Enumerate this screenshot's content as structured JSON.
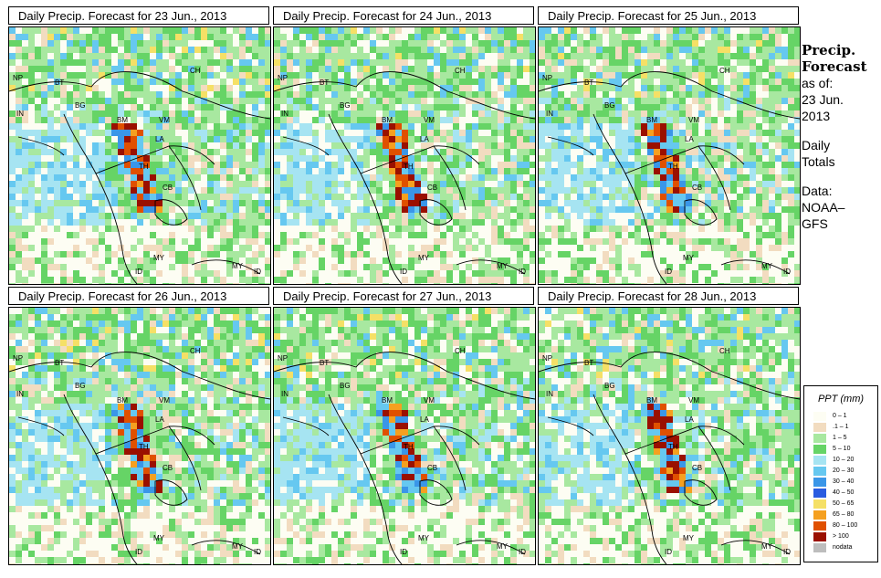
{
  "panels": [
    {
      "title": "Daily Precip. Forecast for  23 Jun., 2013",
      "seed": 11
    },
    {
      "title": "Daily Precip. Forecast for  24 Jun., 2013",
      "seed": 23
    },
    {
      "title": "Daily Precip. Forecast for  25 Jun., 2013",
      "seed": 37
    },
    {
      "title": "Daily Precip. Forecast for  26 Jun., 2013",
      "seed": 41
    },
    {
      "title": "Daily Precip. Forecast for  27 Jun., 2013",
      "seed": 53
    },
    {
      "title": "Daily Precip. Forecast for  28 Jun., 2013",
      "seed": 67
    }
  ],
  "map_labels": [
    "NP",
    "BT",
    "BG",
    "IN",
    "CH",
    "BM",
    "VM",
    "LA",
    "TH",
    "CB",
    "MY",
    "ID",
    "MY",
    "ID"
  ],
  "sidebar": {
    "title_line1": "Precip.",
    "title_line2": "Forecast",
    "asof": "as of:",
    "date_line1": "23 Jun.",
    "date_line2": "2013",
    "daily_line1": "Daily",
    "daily_line2": "Totals",
    "data_line1": "Data:",
    "data_line2": "NOAA–",
    "data_line3": "GFS"
  },
  "legend": {
    "title": "PPT (mm)",
    "items": [
      {
        "label": "0 – 1",
        "color": "#fdfdf3"
      },
      {
        "label": ".1 – 1",
        "color": "#f2dcc0"
      },
      {
        "label": "1 – 5",
        "color": "#a8e8a0"
      },
      {
        "label": "5 – 10",
        "color": "#66d466"
      },
      {
        "label": "10 – 20",
        "color": "#a6e4f2"
      },
      {
        "label": "20 – 30",
        "color": "#66c8f0"
      },
      {
        "label": "30 – 40",
        "color": "#3a96e8"
      },
      {
        "label": "40 – 50",
        "color": "#2a5ce0"
      },
      {
        "label": "50 – 65",
        "color": "#f5e066"
      },
      {
        "label": "65 – 80",
        "color": "#f5a020"
      },
      {
        "label": "80 – 100",
        "color": "#e05000"
      },
      {
        "label": "> 100",
        "color": "#9a1000"
      },
      {
        "label": "nodata",
        "color": "#bdbdbd"
      }
    ]
  }
}
